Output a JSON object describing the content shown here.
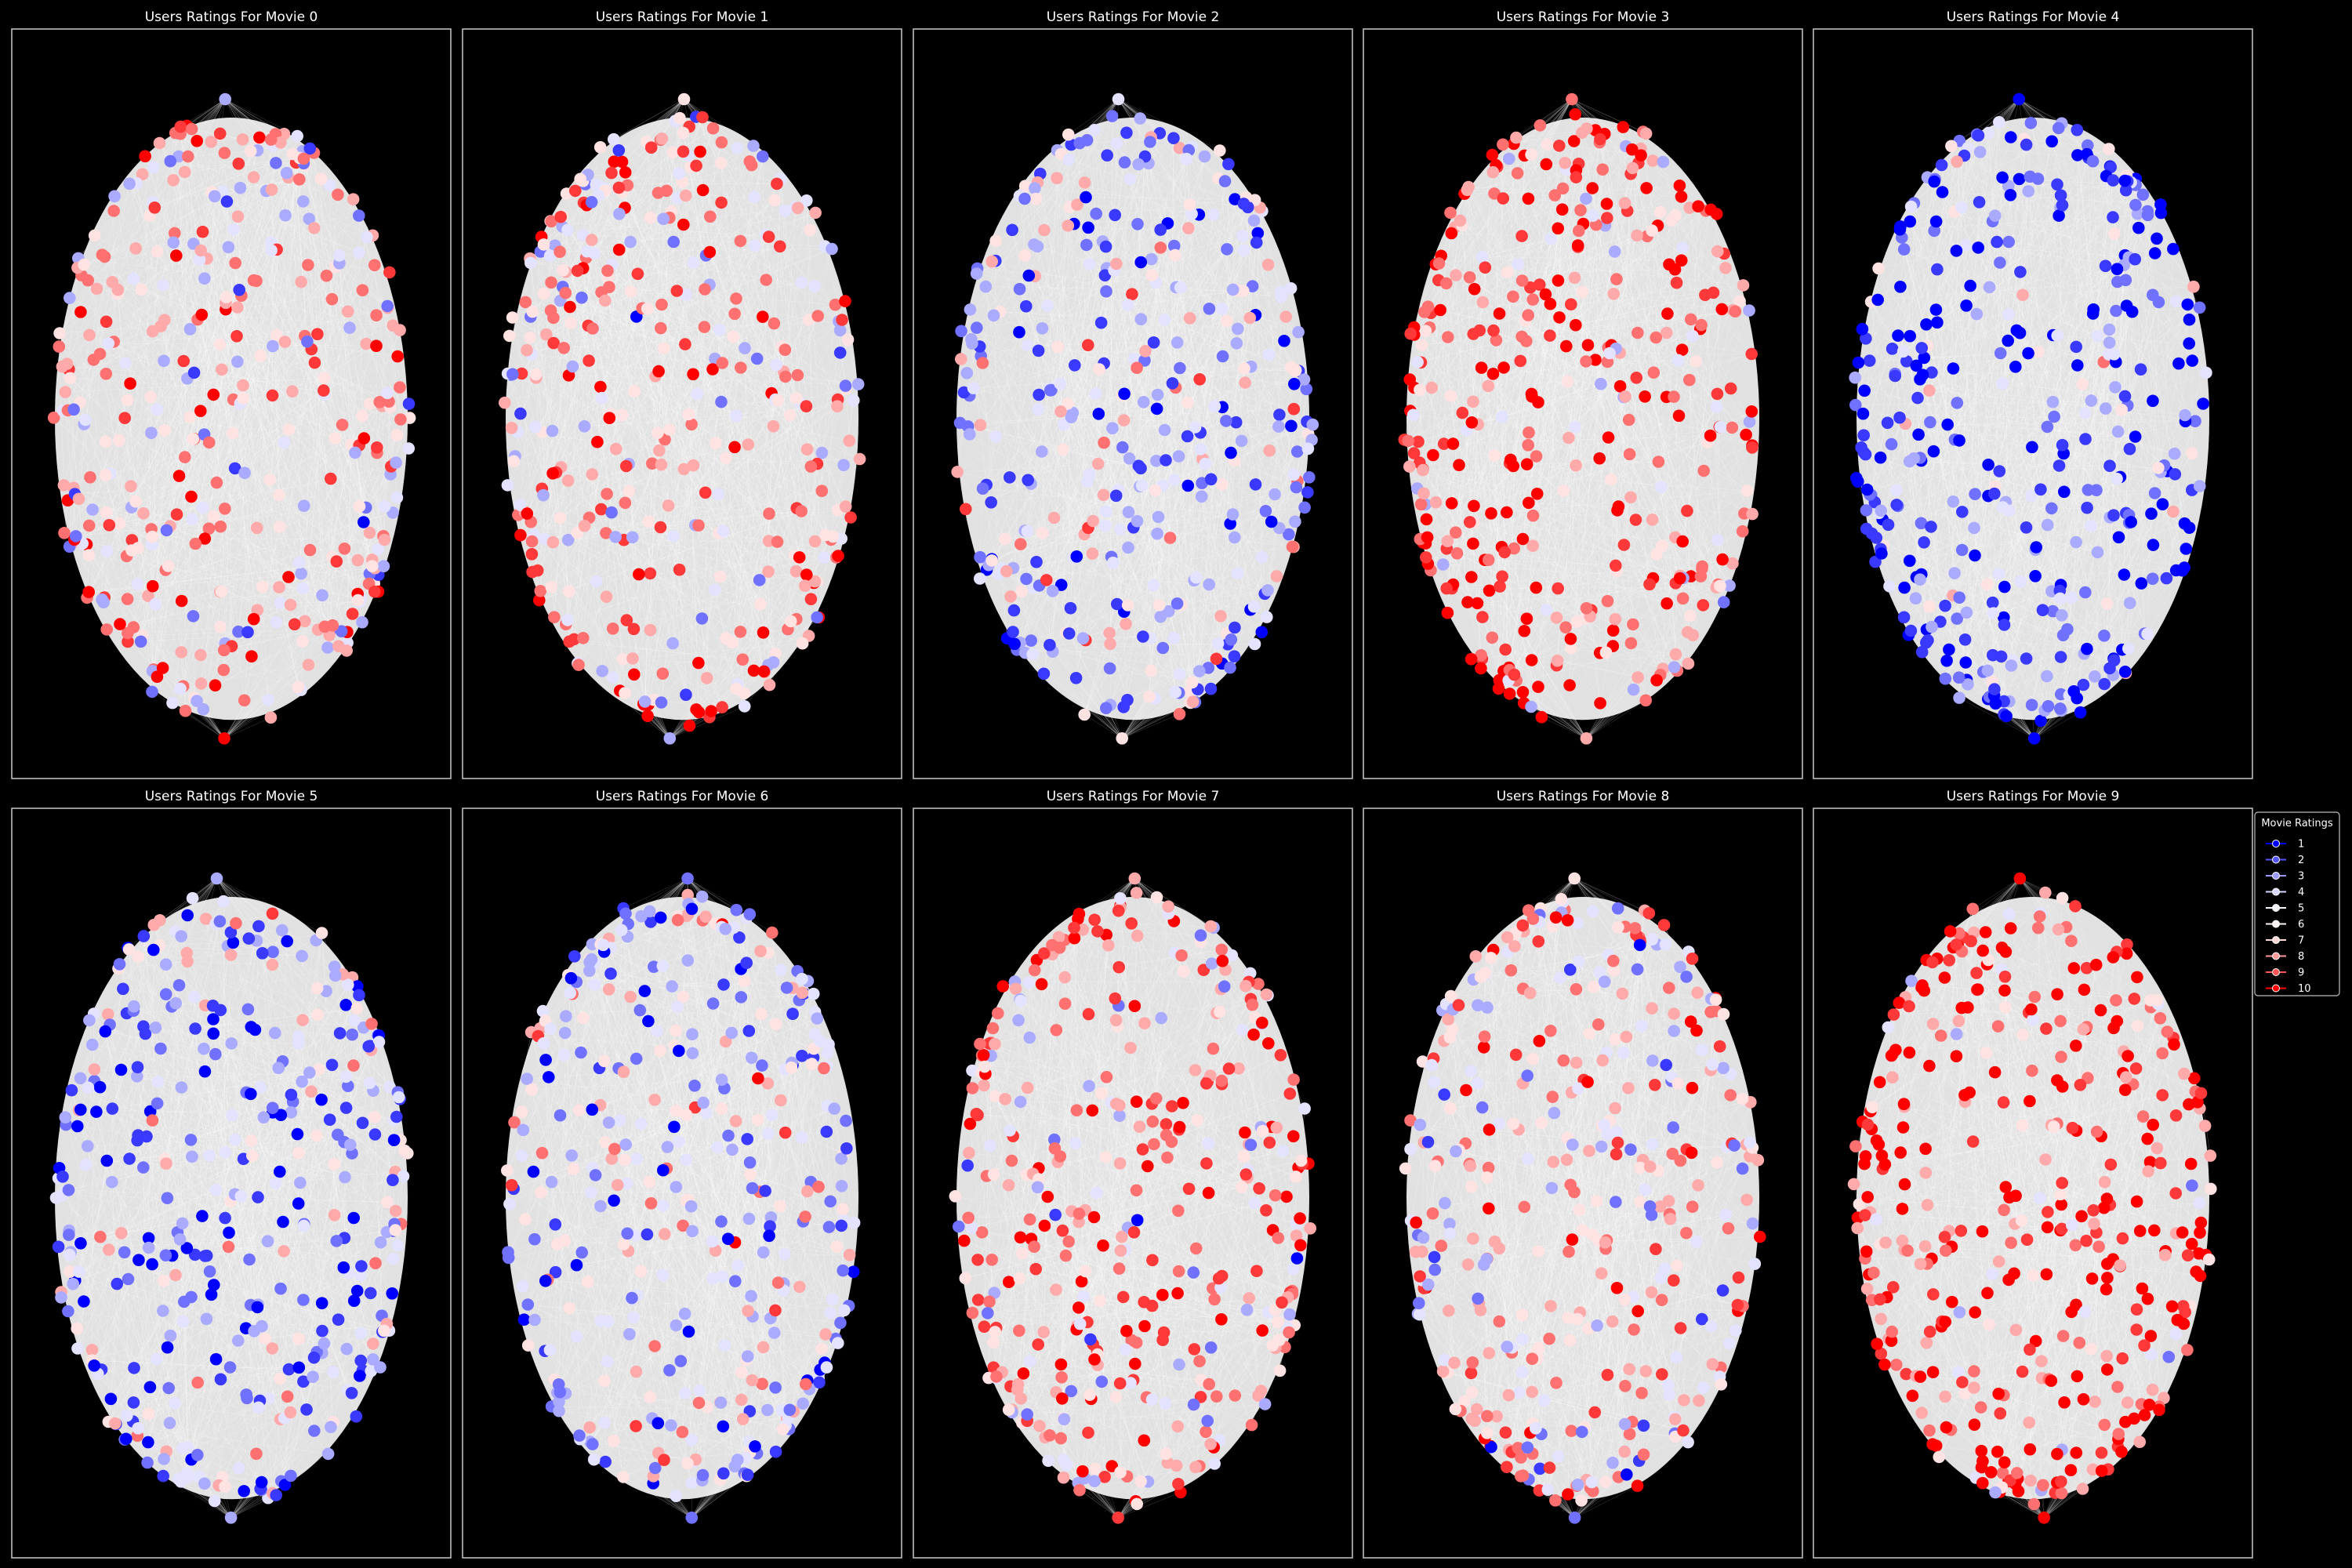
{
  "chart_data": {
    "type": "scatter",
    "subtype": "network-graph",
    "background": "#000000",
    "edge_color": "#ffffff",
    "colormap": "bwr",
    "color_scale": {
      "1": "#0000ff",
      "5": "#f5f5ff",
      "6": "#fff5f5",
      "10": "#ff0000"
    },
    "nodes_per_panel": 400,
    "grid": false,
    "panels": [
      {
        "title": "Users Ratings For Movie 0",
        "rating_bias": 6.5
      },
      {
        "title": "Users Ratings For Movie 1",
        "rating_bias": 6.8
      },
      {
        "title": "Users Ratings For Movie 2",
        "rating_bias": 4.2
      },
      {
        "title": "Users Ratings For Movie 3",
        "rating_bias": 8.6
      },
      {
        "title": "Users Ratings For Movie 4",
        "rating_bias": 2.3
      },
      {
        "title": "Users Ratings For Movie 5",
        "rating_bias": 3.8
      },
      {
        "title": "Users Ratings For Movie 6",
        "rating_bias": 4.6
      },
      {
        "title": "Users Ratings For Movie 7",
        "rating_bias": 7.2
      },
      {
        "title": "Users Ratings For Movie 8",
        "rating_bias": 6.4
      },
      {
        "title": "Users Ratings For Movie 9",
        "rating_bias": 8.9
      }
    ],
    "legend": {
      "title": "Movie Ratings",
      "placement": "right",
      "entries": [
        {
          "label": "1",
          "color": "#0000ff"
        },
        {
          "label": "2",
          "color": "#5555ff"
        },
        {
          "label": "3",
          "color": "#9a9aff"
        },
        {
          "label": "4",
          "color": "#d8d8ff"
        },
        {
          "label": "5",
          "color": "#f5f5ff"
        },
        {
          "label": "6",
          "color": "#fff5f5"
        },
        {
          "label": "7",
          "color": "#ffd8d8"
        },
        {
          "label": "8",
          "color": "#ff9a9a"
        },
        {
          "label": "9",
          "color": "#ff5555"
        },
        {
          "label": "10",
          "color": "#ff0000"
        }
      ]
    }
  }
}
